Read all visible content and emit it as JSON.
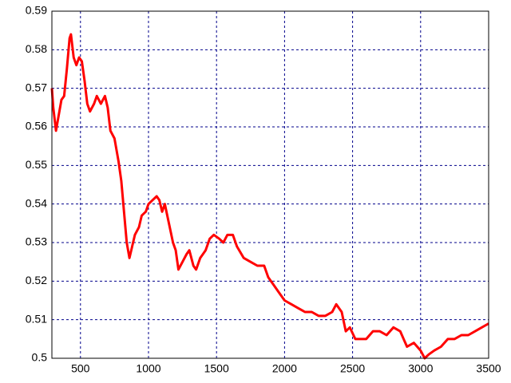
{
  "chart_data": {
    "type": "line",
    "x": [
      290,
      300,
      320,
      340,
      360,
      380,
      400,
      420,
      430,
      450,
      470,
      490,
      510,
      530,
      550,
      570,
      600,
      620,
      650,
      680,
      700,
      720,
      750,
      780,
      800,
      820,
      840,
      860,
      880,
      900,
      930,
      950,
      980,
      1000,
      1030,
      1060,
      1080,
      1100,
      1120,
      1150,
      1180,
      1200,
      1220,
      1250,
      1280,
      1300,
      1330,
      1350,
      1380,
      1420,
      1450,
      1480,
      1520,
      1550,
      1580,
      1620,
      1650,
      1700,
      1750,
      1800,
      1850,
      1880,
      1920,
      1960,
      2000,
      2050,
      2100,
      2150,
      2200,
      2250,
      2300,
      2350,
      2380,
      2420,
      2450,
      2480,
      2520,
      2560,
      2600,
      2650,
      2700,
      2750,
      2800,
      2850,
      2900,
      2950,
      3000,
      3030,
      3060,
      3100,
      3150,
      3200,
      3250,
      3300,
      3350,
      3400,
      3450,
      3500
    ],
    "series": [
      {
        "color": "#ff0000",
        "values": [
          0.57,
          0.565,
          0.559,
          0.563,
          0.567,
          0.568,
          0.575,
          0.583,
          0.584,
          0.578,
          0.576,
          0.578,
          0.577,
          0.572,
          0.566,
          0.564,
          0.566,
          0.568,
          0.566,
          0.568,
          0.565,
          0.559,
          0.557,
          0.551,
          0.546,
          0.538,
          0.53,
          0.526,
          0.529,
          0.532,
          0.534,
          0.537,
          0.538,
          0.54,
          0.541,
          0.542,
          0.541,
          0.538,
          0.54,
          0.535,
          0.53,
          0.528,
          0.523,
          0.525,
          0.527,
          0.528,
          0.524,
          0.523,
          0.526,
          0.528,
          0.531,
          0.532,
          0.531,
          0.53,
          0.532,
          0.532,
          0.529,
          0.526,
          0.525,
          0.524,
          0.524,
          0.521,
          0.519,
          0.517,
          0.515,
          0.514,
          0.513,
          0.512,
          0.512,
          0.511,
          0.511,
          0.512,
          0.514,
          0.512,
          0.507,
          0.508,
          0.505,
          0.505,
          0.505,
          0.507,
          0.507,
          0.506,
          0.508,
          0.507,
          0.503,
          0.504,
          0.502,
          0.5,
          0.501,
          0.502,
          0.503,
          0.505,
          0.505,
          0.506,
          0.506,
          0.507,
          0.508,
          0.509
        ]
      }
    ],
    "xlim": [
      290,
      3500
    ],
    "xticks": [
      500,
      1000,
      1500,
      2000,
      2500,
      3000,
      3500
    ],
    "ylim": [
      0.5,
      0.59
    ],
    "yticks": [
      0.5,
      0.51,
      0.52,
      0.53,
      0.54,
      0.55,
      0.56,
      0.57,
      0.58,
      0.59
    ],
    "grid": true
  }
}
